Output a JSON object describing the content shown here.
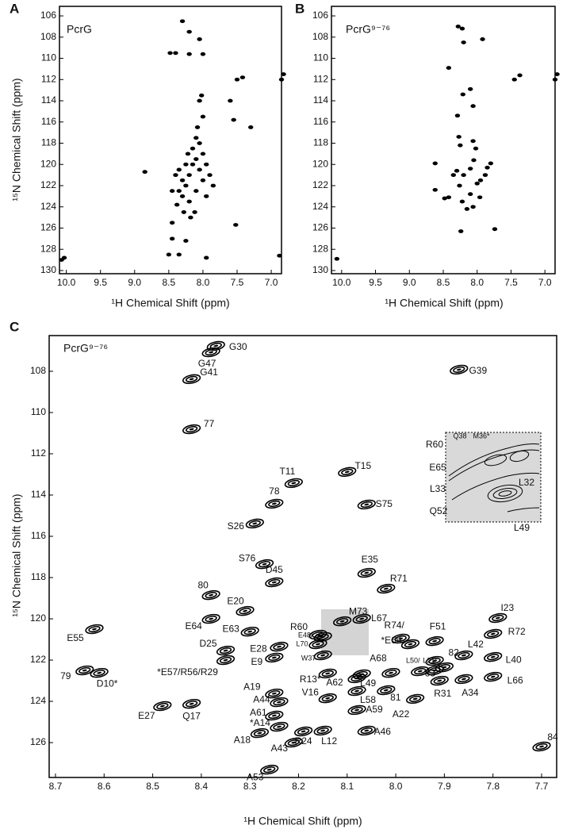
{
  "chart_data": [
    {
      "type": "scatter",
      "panel_label": "A",
      "title": "PcrG",
      "x_label": "¹H Chemical Shift (ppm)",
      "y_label": "¹⁵N Chemical Shift (ppm)",
      "xlim": [
        10.1,
        6.85
      ],
      "ylim": [
        105.1,
        130.3
      ],
      "xticks": [
        {
          "value": 10,
          "label": "10.0"
        },
        9.5,
        {
          "value": 9,
          "label": "9.0"
        },
        8.5,
        {
          "value": 8,
          "label": "8.0"
        },
        7.5,
        {
          "value": 7,
          "label": "7.0"
        }
      ],
      "yticks": [
        106,
        108,
        110,
        112,
        114,
        116,
        118,
        120,
        122,
        124,
        126,
        128,
        130
      ],
      "color": "#000000",
      "x": [
        8.35,
        8.3,
        8.25,
        8.2,
        8.15,
        8.1,
        8.05,
        8.0,
        8.1,
        8.2,
        8.3,
        8.35,
        8.25,
        8.15,
        8.05,
        8.0,
        7.95,
        8.12,
        8.18,
        8.28,
        8.4,
        8.38,
        7.9,
        7.85,
        7.95,
        8.08,
        8.0,
        8.05,
        8.02,
        8.1,
        8.22,
        8.45,
        10.07,
        10.03,
        8.3,
        8.2,
        8.05,
        8.48,
        8.4,
        8.2,
        8.0,
        7.5,
        7.42,
        6.85,
        6.82,
        7.55,
        7.3,
        7.6,
        8.5,
        8.35,
        7.52,
        8.45,
        7.95,
        6.88,
        8.45,
        8.25,
        8.85
      ],
      "values": [
        120.5,
        121.5,
        122,
        121,
        120,
        119.5,
        120.5,
        121.5,
        122.5,
        123.5,
        123,
        122.5,
        120,
        118.5,
        118,
        119,
        120,
        124.5,
        125,
        124.5,
        121,
        123.8,
        121,
        122,
        123,
        116.5,
        115.5,
        114,
        113.5,
        117.5,
        119,
        122.5,
        129,
        128.8,
        106.5,
        107.5,
        108.2,
        109.5,
        109.5,
        109.6,
        109.6,
        112,
        111.8,
        112,
        111.5,
        115.8,
        116.5,
        114,
        128.5,
        128.5,
        125.7,
        125.5,
        128.8,
        128.6,
        127,
        127.2,
        120.7
      ]
    },
    {
      "type": "scatter",
      "panel_label": "B",
      "title": "PcrG⁹⁻⁷⁶",
      "x_label": "¹H Chemical Shift (ppm)",
      "xlim": [
        10.15,
        6.85
      ],
      "ylim": [
        105.1,
        130.3
      ],
      "xticks": [
        {
          "value": 10,
          "label": "10.0"
        },
        9.5,
        {
          "value": 9,
          "label": "9.0"
        },
        8.5,
        {
          "value": 8,
          "label": "8.0"
        },
        7.5,
        {
          "value": 7,
          "label": "7.0"
        }
      ],
      "yticks": [
        106,
        108,
        110,
        112,
        114,
        116,
        118,
        120,
        122,
        124,
        126,
        128,
        130
      ],
      "color": "#000000",
      "x": [
        10.07,
        8.28,
        8.22,
        8.2,
        7.92,
        8.42,
        7.45,
        7.37,
        6.85,
        6.82,
        8.21,
        8.1,
        8.06,
        8.29,
        8.27,
        8.25,
        8.06,
        8.02,
        8.62,
        8.62,
        8.48,
        8.42,
        8.3,
        8.2,
        8.1,
        8.0,
        7.95,
        7.88,
        7.85,
        8.26,
        8.22,
        8.15,
        8.1,
        8.06,
        7.96,
        8.24,
        7.74,
        8.35,
        8.05,
        7.8
      ],
      "values": [
        128.9,
        107,
        107.2,
        108.5,
        108.2,
        110.9,
        112,
        111.6,
        112,
        111.5,
        113.4,
        112.9,
        114.5,
        115.4,
        117.4,
        118.2,
        117.8,
        118.5,
        119.9,
        122.4,
        123.2,
        123.1,
        120.6,
        121,
        120.4,
        121.8,
        121.5,
        121,
        120.3,
        122,
        123.5,
        124.2,
        122.8,
        124,
        123.1,
        126.3,
        126.1,
        121,
        119.6,
        119.9
      ]
    },
    {
      "type": "scatter",
      "panel_label": "C",
      "title": "PcrG⁹⁻⁷⁶",
      "x_label": "¹H Chemical Shift (ppm)",
      "y_label": "¹⁵N Chemical Shift (ppm)",
      "xlim": [
        8.713,
        7.669
      ],
      "ylim": [
        106.27,
        127.69
      ],
      "xticks": [
        8.7,
        8.6,
        8.5,
        8.4,
        8.3,
        8.2,
        8.1,
        {
          "value": 8,
          "label": "8.0"
        },
        7.9,
        7.8,
        7.7
      ],
      "yticks": [
        108,
        110,
        112,
        114,
        116,
        118,
        120,
        122,
        124,
        126
      ],
      "color": "#000000",
      "point_labels": [
        "G47",
        "G30",
        "G41",
        "G39",
        "77",
        "T11",
        "T15",
        "78",
        "S26",
        "S75",
        "S76",
        "D45",
        "E35",
        "R71",
        "80",
        "E20",
        "E64",
        "E63",
        "M73",
        "L67",
        "R74/",
        "*E69",
        "F51",
        "I23",
        "R72",
        "82",
        "L42",
        "L40",
        "L66",
        "A34",
        "R31",
        "83",
        "L50/",
        "L21/",
        "A68",
        "81",
        "A22",
        "L49",
        "L58",
        "A62",
        "R13*",
        "V16",
        "A59",
        "A46",
        "L12",
        "R24",
        "A43",
        "A18",
        "*A14",
        "A61",
        "A44",
        "A19",
        "E9",
        "E28",
        "D25",
        "*E57/R56/R29",
        "E55",
        "79",
        "D10*",
        "E27",
        "Q17",
        "A53",
        "84",
        "E48/",
        "L70",
        "W37",
        "R60"
      ],
      "x": [
        8.38,
        8.37,
        8.42,
        7.87,
        8.42,
        8.21,
        8.1,
        8.25,
        8.29,
        8.06,
        8.27,
        8.25,
        8.06,
        8.02,
        8.38,
        8.31,
        8.38,
        8.3,
        8.11,
        8.07,
        7.99,
        7.97,
        7.92,
        7.79,
        7.8,
        7.92,
        7.86,
        7.8,
        7.8,
        7.86,
        7.91,
        7.9,
        7.95,
        7.92,
        8.01,
        8.02,
        7.96,
        8.07,
        8.08,
        8.08,
        8.14,
        8.14,
        8.08,
        8.06,
        8.15,
        8.19,
        8.21,
        8.28,
        8.24,
        8.25,
        8.24,
        8.25,
        8.25,
        8.24,
        8.35,
        8.35,
        8.62,
        8.64,
        8.61,
        8.48,
        8.42,
        8.26,
        7.7,
        8.15,
        8.16,
        8.15,
        8.16
      ],
      "values": [
        107.08,
        106.77,
        108.38,
        107.92,
        110.81,
        113.42,
        112.88,
        114.42,
        115.38,
        114.46,
        117.35,
        118.23,
        117.77,
        118.54,
        118.85,
        119.62,
        120.0,
        120.62,
        120.12,
        120.0,
        120.96,
        121.23,
        121.08,
        119.96,
        120.73,
        122.04,
        121.77,
        121.85,
        122.81,
        122.92,
        123.0,
        122.35,
        122.54,
        122.5,
        122.62,
        123.46,
        123.88,
        122.69,
        123.5,
        122.88,
        122.65,
        123.85,
        124.42,
        125.42,
        125.42,
        125.46,
        126.0,
        125.54,
        125.23,
        124.69,
        124.04,
        123.62,
        121.88,
        121.35,
        121.54,
        122.0,
        120.5,
        122.5,
        122.62,
        124.23,
        124.12,
        127.31,
        126.19,
        120.88,
        121.23,
        121.77,
        120.77
      ],
      "inset_labels": [
        "R60",
        "Q38",
        "M36*",
        "E65",
        "L33",
        "L32",
        "Q52",
        "L49"
      ]
    }
  ]
}
